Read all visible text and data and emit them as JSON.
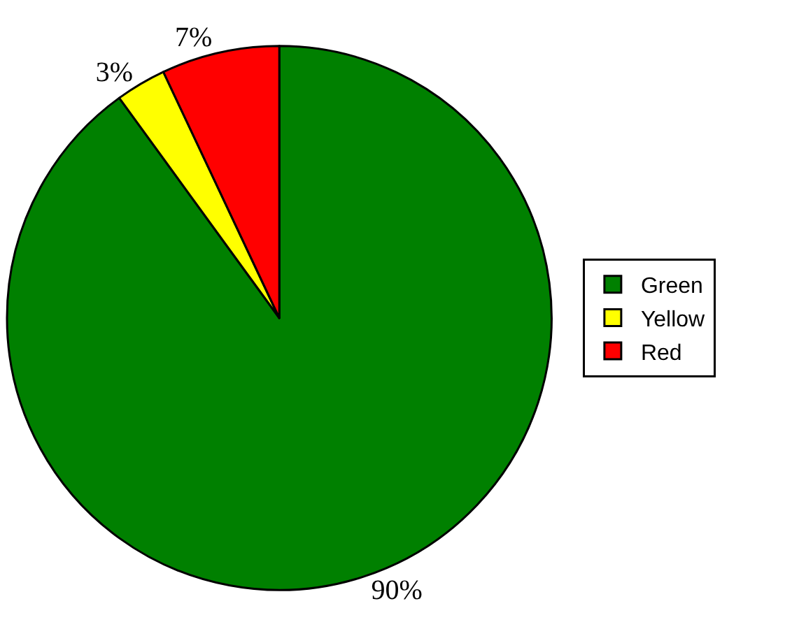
{
  "chart_data": {
    "type": "pie",
    "categories": [
      "Green",
      "Yellow",
      "Red"
    ],
    "values": [
      90,
      3,
      7
    ],
    "value_labels": [
      "90%",
      "3%",
      "7%"
    ],
    "colors": [
      "#008000",
      "#ffff00",
      "#ff0000"
    ],
    "legend": "right"
  }
}
